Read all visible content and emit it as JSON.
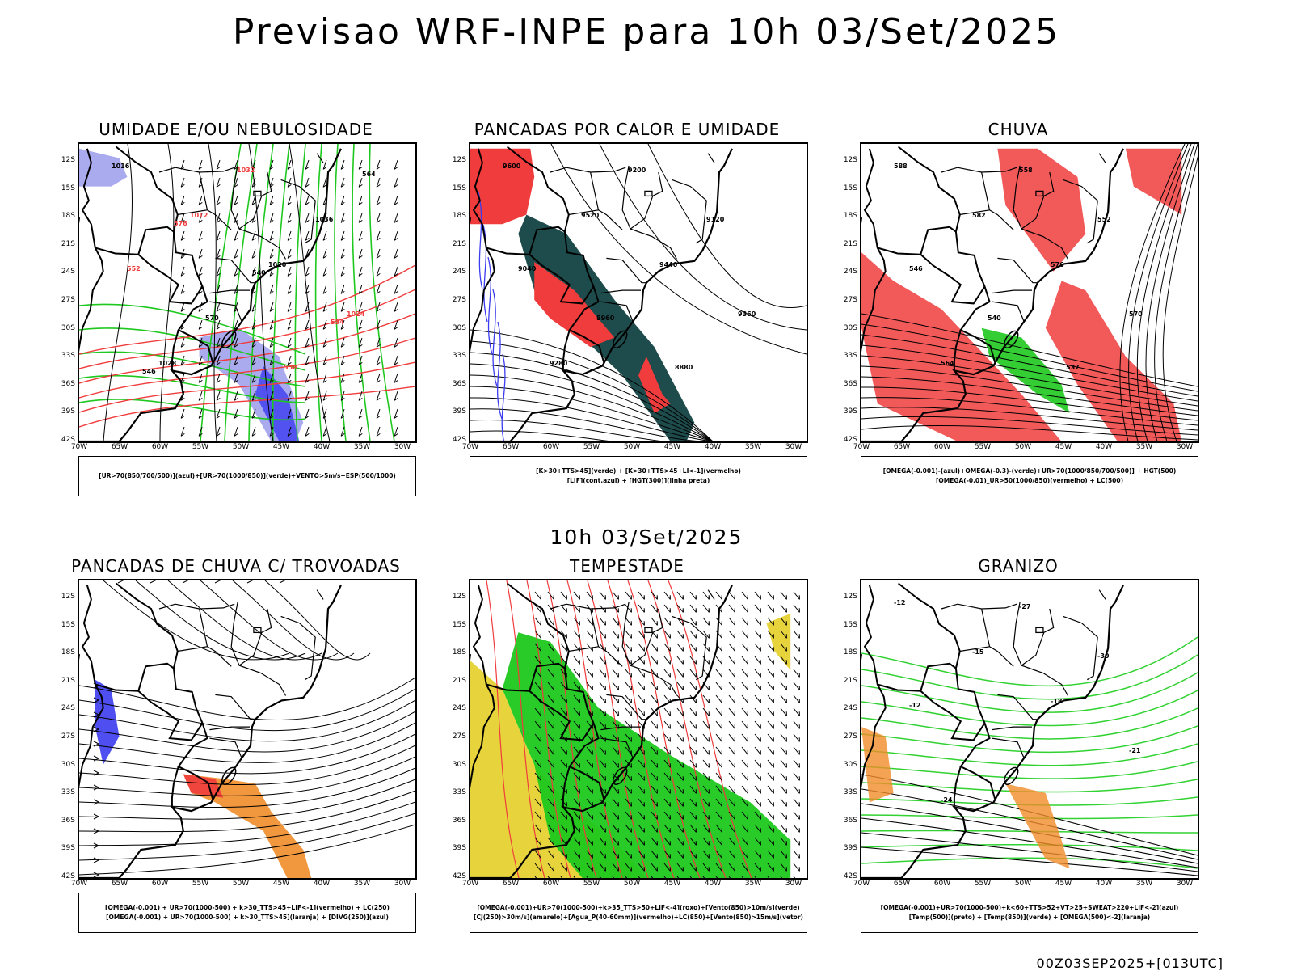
{
  "title": "Previsao WRF-INPE  para 10h 03/Set/2025",
  "mid_title": "10h 03/Set/2025",
  "footer": "00Z03SEP2025+[013UTC]",
  "lat_labels": [
    "12S",
    "15S",
    "18S",
    "21S",
    "24S",
    "27S",
    "30S",
    "33S",
    "36S",
    "39S",
    "42S"
  ],
  "lon_labels": [
    "70W",
    "65W",
    "60W",
    "55W",
    "50W",
    "45W",
    "40W",
    "35W",
    "30W"
  ],
  "colors": {
    "red": "#f03c3c",
    "green": "#1ec81e",
    "blue": "#3c3cf0",
    "lightblue": "#aaaaee",
    "yellow": "#e6d232",
    "darkteal": "#1e4b4b",
    "orange": "#f08c28",
    "lightgreen": "#32d232"
  },
  "panels": [
    {
      "id": "umidade",
      "title": "UMIDADE E/OU NEBULOSIDADE",
      "legend": [
        "[UR>70(850/700/500)](azul)+[UR>70(1000/850)](verde)+VENTO>5m/s+ESP(500/1000)"
      ],
      "contour_labels": [
        "1016",
        "1012",
        "1020",
        "1024",
        "1028",
        "1032",
        "1036",
        "552",
        "570",
        "558",
        "564",
        "576",
        "540",
        "534",
        "546"
      ]
    },
    {
      "id": "pancadas-calor",
      "title": "PANCADAS POR CALOR E UMIDADE",
      "legend": [
        "[K>30+TTS>45](verde) + [K>30+TTS>45+LI<-1](vermelho)",
        "[LIF](cont.azul) + [HGT(300)](linha preta)"
      ],
      "contour_labels": [
        "9600",
        "9520",
        "9440",
        "9360",
        "9280",
        "9200",
        "9120",
        "9040",
        "8960",
        "8880"
      ]
    },
    {
      "id": "chuva",
      "title": "CHUVA",
      "legend": [
        "[OMEGA(-0.001)-(azul)+OMEGA(-0.3)-(verde)+UR>70(1000/850/700/500)] + HGT(500)",
        "[OMEGA(-0.01)_UR>50(1000/850)(vermelho) + LC(500)"
      ],
      "contour_labels": [
        "588",
        "582",
        "576",
        "570",
        "564",
        "558",
        "552",
        "546",
        "540",
        "537"
      ]
    },
    {
      "id": "trovoadas",
      "title": "PANCADAS DE CHUVA C/ TROVOADAS",
      "legend": [
        "[OMEGA(-0.001) + UR>70(1000-500) + k>30_TTS>45+LIF<-1](vermelho) + LC(250)",
        "[OMEGA(-0.001) + UR>70(1000-500) + k>30_TTS>45](laranja) + [DIVG(250)](azul)"
      ],
      "contour_labels": []
    },
    {
      "id": "tempestade",
      "title": "TEMPESTADE",
      "legend": [
        "[OMEGA(-0.001)+UR>70(1000-500)+k>35_TTS>50+LIF<-4](roxo)+[Vento(850)>10m/s](verde)",
        "[CJ(250)>30m/s](amarelo)+[Agua_P(40-60mm)](vermelho)+LC(850)+[Vento(850)>15m/s](vetor)"
      ],
      "contour_labels": []
    },
    {
      "id": "granizo",
      "title": "GRANIZO",
      "legend": [
        "[OMEGA(-0.001)+UR>70(1000-500)+k<60+TTS>52+VT>25+SWEAT>220+LIF<-2](azul)",
        "[Temp(500)](preto) + [Temp(850)](verde) + [OMEGA(500)<-2](laranja)"
      ],
      "contour_labels": [
        "-12",
        "-15",
        "-18",
        "-21",
        "-24",
        "-27",
        "-30",
        "-12"
      ]
    }
  ]
}
